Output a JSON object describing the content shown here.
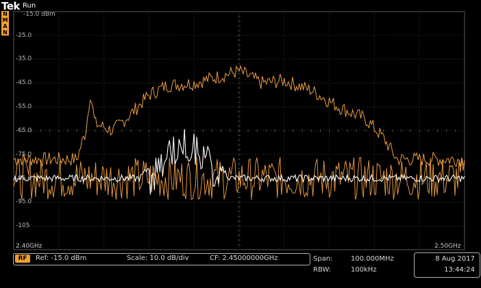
{
  "header": {
    "brand": "Tek",
    "run_state": "Run",
    "trace_flags": [
      "N",
      "M",
      "A",
      "N"
    ]
  },
  "reference_level": "-15.0 dBm",
  "y_axis_labels": [
    "-25.0",
    "-35.0",
    "-45.0",
    "-55.0",
    "-65.0",
    "-75.0",
    "-85.0",
    "-95.0",
    "-105"
  ],
  "freq_start": "2.40GHz",
  "freq_stop": "2.50GHz",
  "status_bar": {
    "rf_badge": "RF",
    "ref": "Ref: -15.0 dBm",
    "scale": "Scale: 10.0 dB/div",
    "cf": "CF:  2.45000000GHz"
  },
  "span": {
    "span_label": "Span:",
    "span_value": "100.000MHz",
    "rbw_label": "RBW:",
    "rbw_value": "100kHz"
  },
  "datetime": {
    "date": "8 Aug 2017",
    "time": "13:44:24"
  },
  "colors": {
    "trace_orange": "#f0a040",
    "trace_white": "#ffffff",
    "grid": "#3c3c3c",
    "accent": "#f0a030"
  },
  "chart_data": {
    "type": "line",
    "x_range": [
      2.4,
      2.5
    ],
    "ylim": [
      -115,
      -15
    ],
    "series": [
      {
        "color": "#f0a040",
        "values": [
          {
            "f": 2.4,
            "dbm": -77
          },
          {
            "f": 2.414,
            "dbm": -77
          },
          {
            "f": 2.416,
            "dbm": -65
          },
          {
            "f": 2.417,
            "dbm": -49
          },
          {
            "f": 2.418,
            "dbm": -62
          },
          {
            "f": 2.422,
            "dbm": -65
          },
          {
            "f": 2.426,
            "dbm": -58
          },
          {
            "f": 2.43,
            "dbm": -50
          },
          {
            "f": 2.434,
            "dbm": -46
          },
          {
            "f": 2.44,
            "dbm": -45
          },
          {
            "f": 2.444,
            "dbm": -43
          },
          {
            "f": 2.45,
            "dbm": -40
          },
          {
            "f": 2.455,
            "dbm": -45
          },
          {
            "f": 2.46,
            "dbm": -44
          },
          {
            "f": 2.466,
            "dbm": -48
          },
          {
            "f": 2.472,
            "dbm": -55
          },
          {
            "f": 2.478,
            "dbm": -60
          },
          {
            "f": 2.482,
            "dbm": -68
          },
          {
            "f": 2.485,
            "dbm": -77
          },
          {
            "f": 2.5,
            "dbm": -77
          }
        ]
      },
      {
        "color": "#f0a040",
        "values": [
          {
            "f": 2.4,
            "dbm": -85
          },
          {
            "f": 2.5,
            "dbm": -85
          }
        ]
      },
      {
        "color": "#ffffff",
        "values": [
          {
            "f": 2.4,
            "dbm": -85
          },
          {
            "f": 2.428,
            "dbm": -85
          },
          {
            "f": 2.431,
            "dbm": -78
          },
          {
            "f": 2.434,
            "dbm": -68
          },
          {
            "f": 2.438,
            "dbm": -64
          },
          {
            "f": 2.442,
            "dbm": -68
          },
          {
            "f": 2.445,
            "dbm": -78
          },
          {
            "f": 2.448,
            "dbm": -85
          },
          {
            "f": 2.5,
            "dbm": -85
          }
        ]
      }
    ]
  }
}
